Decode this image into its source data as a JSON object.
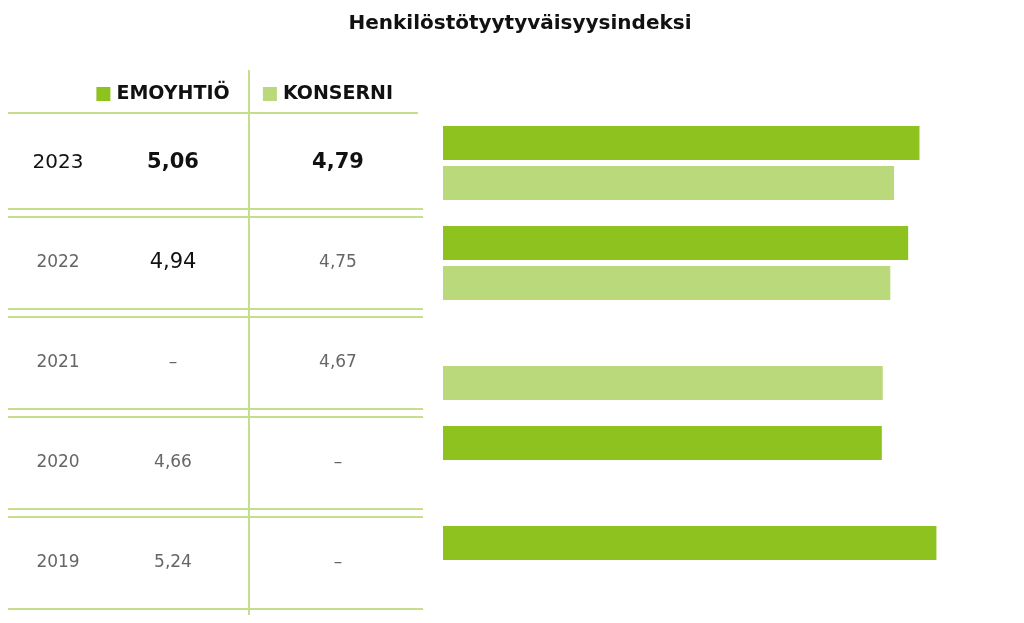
{
  "chart_data": {
    "type": "bar",
    "orientation": "horizontal",
    "title": "Henkilöstötyytyväisyysindeksi",
    "legend": "top left",
    "categories": [
      "2023",
      "2022",
      "2021",
      "2020",
      "2019"
    ],
    "series": [
      {
        "name": "EMOYHTIÖ",
        "color": "#8dc21f",
        "values": [
          5.06,
          4.94,
          null,
          4.66,
          5.24
        ],
        "value_labels": [
          "5,06",
          "4,94",
          "–",
          "4,66",
          "5,24"
        ]
      },
      {
        "name": "KONSERNI",
        "color": "#b9d97a",
        "values": [
          4.79,
          4.75,
          4.67,
          null,
          null
        ],
        "value_labels": [
          "4,79",
          "4,75",
          "4,67",
          "–",
          "–"
        ]
      }
    ]
  }
}
